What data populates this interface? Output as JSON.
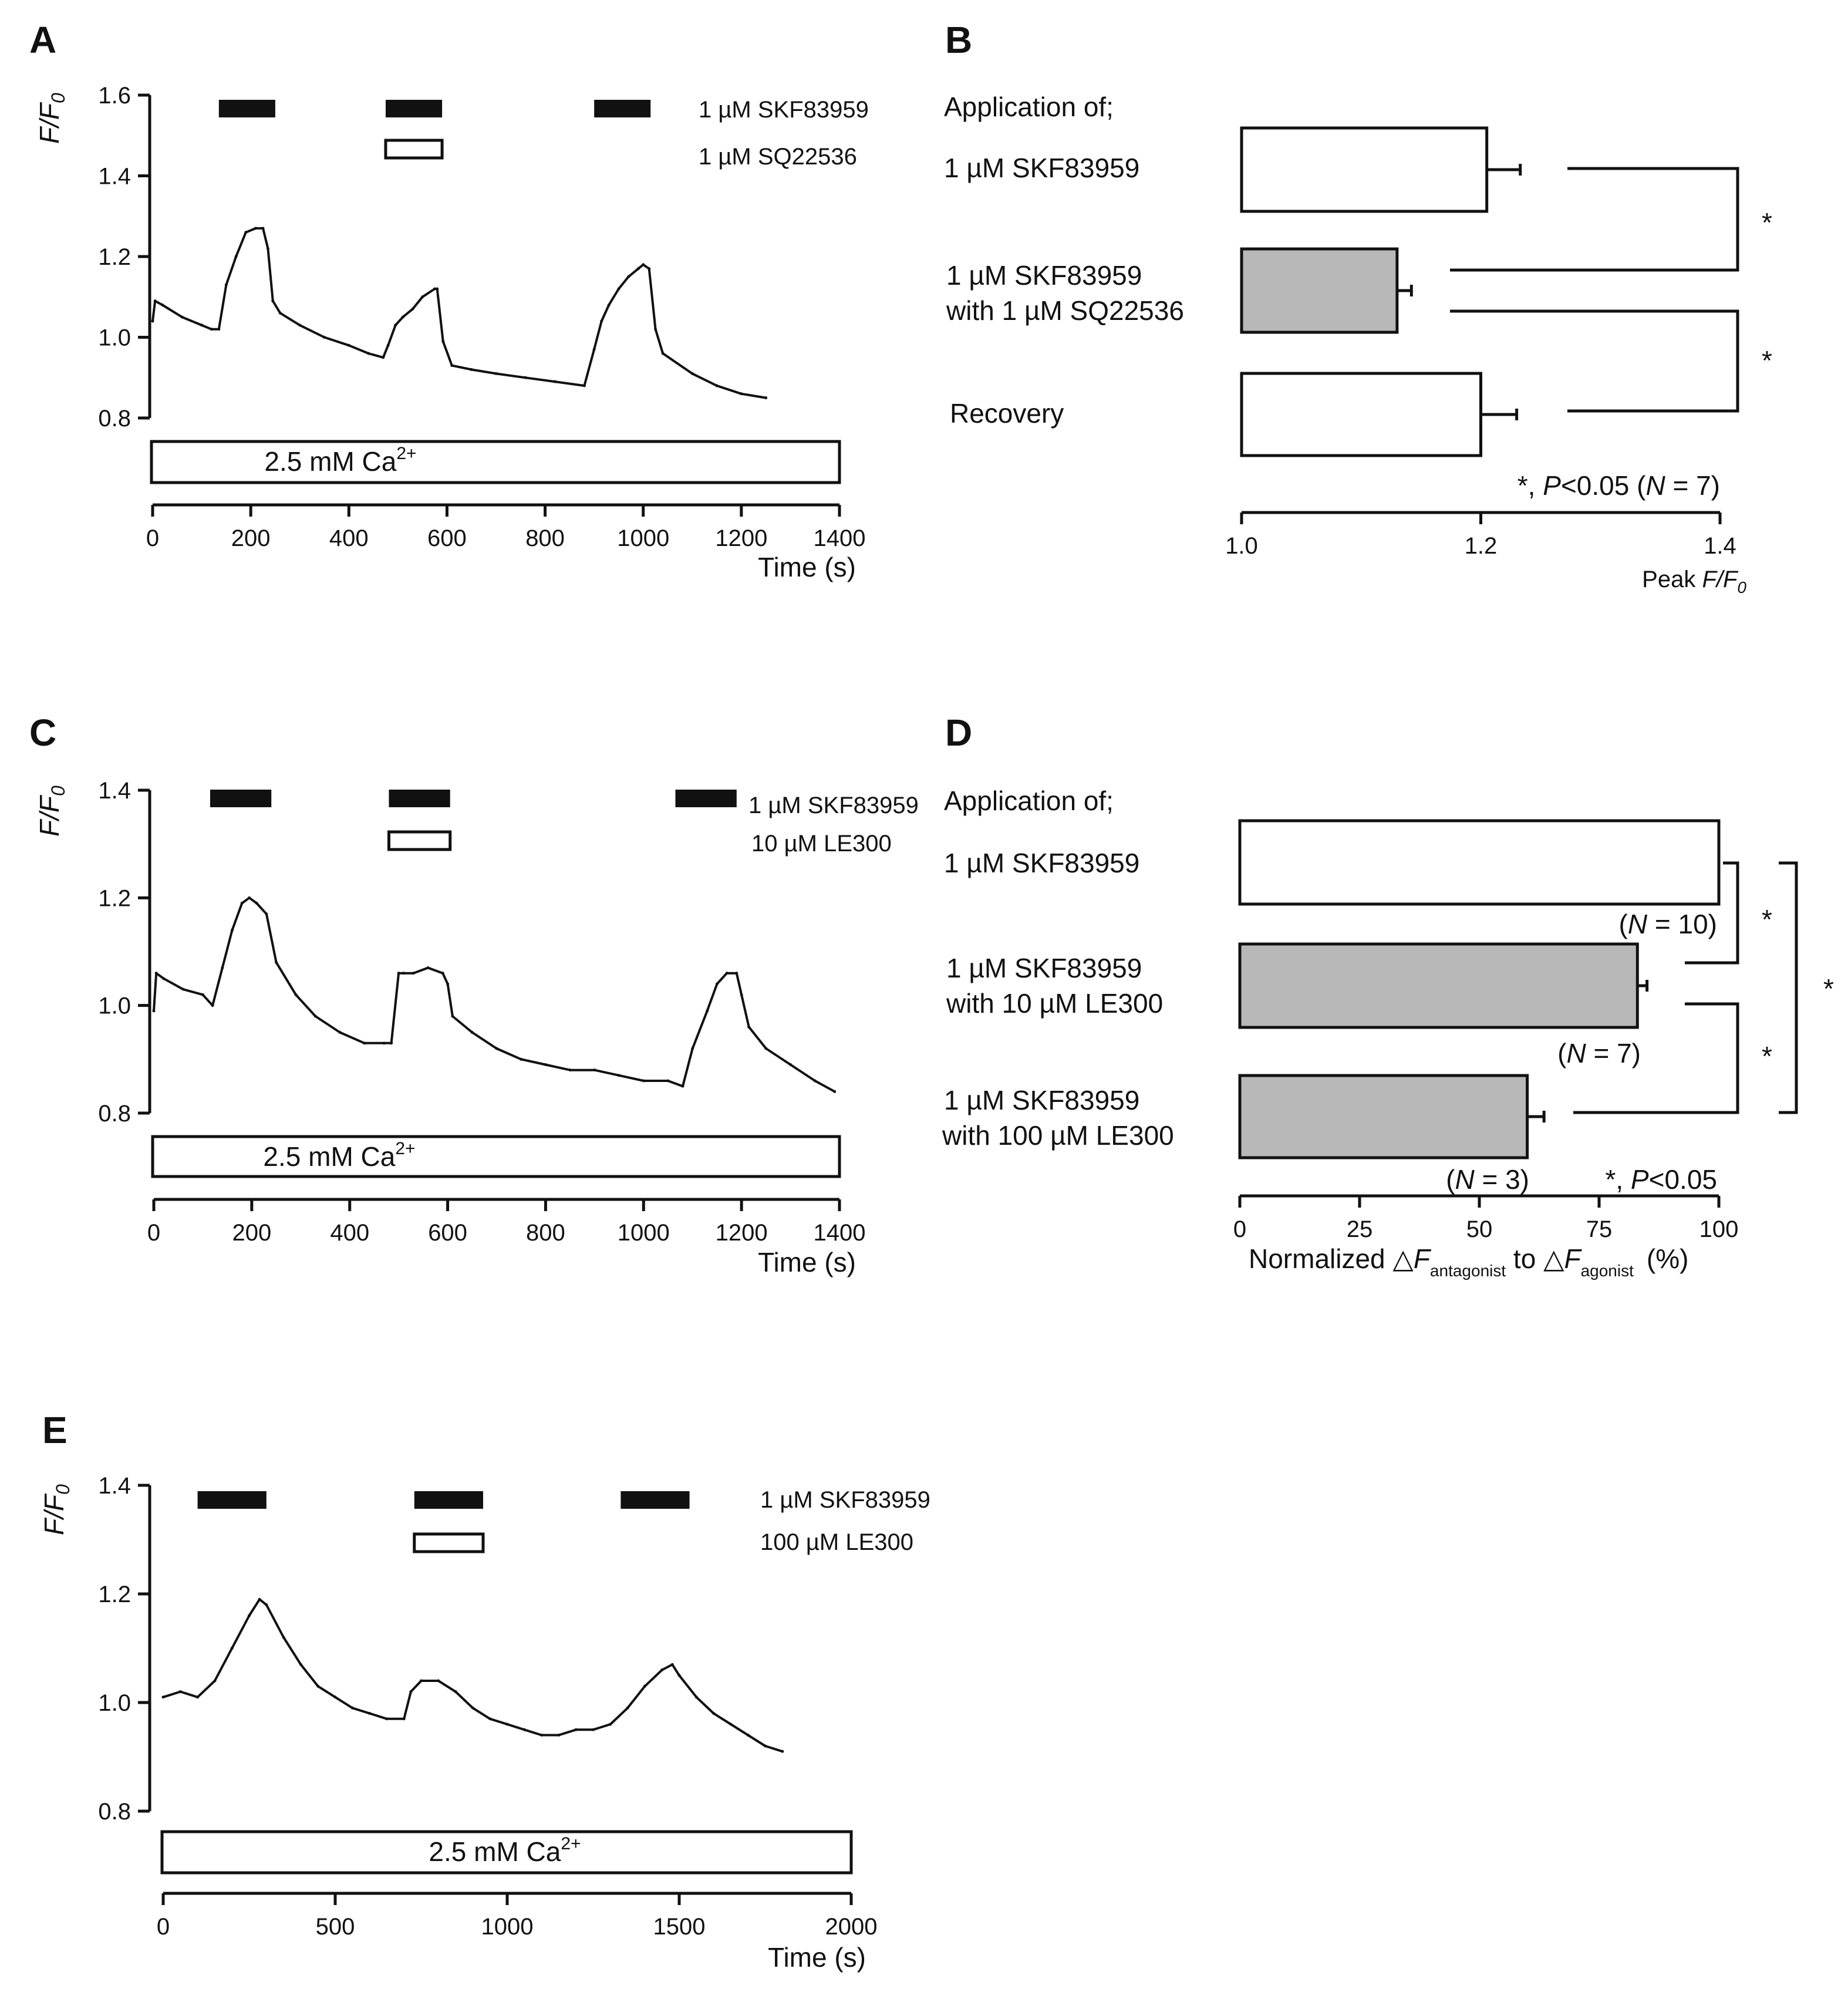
{
  "panels": {
    "A": {
      "label": "A",
      "ylabel_main": "F/F",
      "ylabel_sub": "0",
      "xlabel": "Time (s)",
      "ca_label": "2.5 mM Ca",
      "ca_sup": "2+",
      "drug1": "1 µM SKF83959",
      "drug2": "1 µM SQ22536"
    },
    "B": {
      "label": "B",
      "heading": "Application of;",
      "rows": [
        "1 µM SKF83959",
        "1 µM SKF83959",
        "with 1 µM SQ22536",
        "Recovery"
      ],
      "xlabel_main": "Peak ",
      "xlabel_italic": "F/F",
      "xlabel_sub": "0",
      "stat_pre": "*, ",
      "stat_p": "P",
      "stat_mid": "<0.05 (",
      "stat_n": "N",
      "stat_post": " = 7)",
      "star": "*"
    },
    "C": {
      "label": "C",
      "ylabel_main": "F/F",
      "ylabel_sub": "0",
      "xlabel": "Time (s)",
      "ca_label": "2.5 mM Ca",
      "ca_sup": "2+",
      "drug1": "1 µM SKF83959",
      "drug2": "10 µM LE300"
    },
    "D": {
      "label": "D",
      "heading": "Application of;",
      "rows": [
        "1 µM SKF83959",
        "1 µM SKF83959",
        "with 10 µM LE300",
        "1 µM SKF83959",
        "with 100 µM LE300"
      ],
      "n_labels": [
        {
          "pre": "(",
          "n": "N",
          "post": " = 10)"
        },
        {
          "pre": "(",
          "n": "N",
          "post": " = 7)"
        },
        {
          "pre": "(",
          "n": "N",
          "post": " = 3)"
        }
      ],
      "stat_pre": "*, ",
      "stat_p": "P",
      "stat_post": "<0.05",
      "xlabel_a": "Normalized ",
      "xlabel_delta": "△",
      "xlabel_f": "F",
      "xlabel_sub1": "antagonist",
      "xlabel_to": " to ",
      "xlabel_sub2": "agonist",
      "xlabel_pct": "(%)",
      "star": "*"
    },
    "E": {
      "label": "E",
      "ylabel_main": "F/F",
      "ylabel_sub": "0",
      "xlabel": "Time (s)",
      "ca_label": "2.5 mM Ca",
      "ca_sup": "2+",
      "drug1": "1 µM SKF83959",
      "drug2": "100 µM LE300"
    }
  },
  "chart_data": [
    {
      "id": "A",
      "type": "line",
      "xlabel": "Time (s)",
      "ylabel": "F/F0",
      "xlim": [
        0,
        1400
      ],
      "ylim": [
        0.8,
        1.6
      ],
      "xticks": [
        0,
        200,
        400,
        600,
        800,
        1000,
        1200,
        1400
      ],
      "yticks": [
        0.8,
        1.0,
        1.2,
        1.4,
        1.6
      ],
      "series": [
        {
          "name": "F/F0",
          "x": [
            0,
            5,
            20,
            60,
            100,
            120,
            135,
            150,
            170,
            190,
            210,
            225,
            235,
            245,
            260,
            300,
            350,
            400,
            440,
            470,
            480,
            495,
            510,
            530,
            550,
            575,
            580,
            592,
            610,
            650,
            700,
            760,
            820,
            880,
            900,
            915,
            930,
            950,
            970,
            990,
            1000,
            1012,
            1025,
            1040,
            1100,
            1150,
            1200,
            1250
          ],
          "y": [
            1.04,
            1.09,
            1.08,
            1.05,
            1.03,
            1.02,
            1.02,
            1.13,
            1.2,
            1.26,
            1.27,
            1.27,
            1.22,
            1.09,
            1.06,
            1.03,
            1.0,
            0.98,
            0.96,
            0.95,
            0.98,
            1.03,
            1.05,
            1.07,
            1.1,
            1.12,
            1.12,
            0.99,
            0.93,
            0.92,
            0.91,
            0.9,
            0.89,
            0.88,
            0.97,
            1.04,
            1.08,
            1.12,
            1.15,
            1.17,
            1.18,
            1.17,
            1.02,
            0.96,
            0.91,
            0.88,
            0.86,
            0.85
          ]
        }
      ],
      "drug1_intervals": [
        [
          135,
          250
        ],
        [
          475,
          590
        ],
        [
          900,
          1015
        ]
      ],
      "drug2_intervals": [
        [
          475,
          590
        ]
      ],
      "bath_range": [
        0,
        1400
      ]
    },
    {
      "id": "B",
      "type": "bar",
      "orientation": "horizontal",
      "xlim": [
        1.0,
        1.4
      ],
      "xticks": [
        1.0,
        1.2,
        1.4
      ],
      "xlabel": "Peak F/F0",
      "categories": [
        "1 µM SKF83959",
        "1 µM SKF83959 with 1 µM SQ22536",
        "Recovery"
      ],
      "values": [
        1.205,
        1.13,
        1.2
      ],
      "errors": [
        0.028,
        0.012,
        0.03
      ],
      "fills": [
        "#ffffff",
        "#b8b8b8",
        "#ffffff"
      ],
      "significance": [
        "* (1 vs 2)",
        "* (2 vs 3)"
      ]
    },
    {
      "id": "C",
      "type": "line",
      "xlabel": "Time (s)",
      "ylabel": "F/F0",
      "xlim": [
        0,
        1400
      ],
      "ylim": [
        0.8,
        1.4
      ],
      "xticks": [
        0,
        200,
        400,
        600,
        800,
        1000,
        1200,
        1400
      ],
      "yticks": [
        0.8,
        1.0,
        1.2,
        1.4
      ],
      "series": [
        {
          "name": "F/F0",
          "x": [
            0,
            5,
            20,
            60,
            100,
            120,
            140,
            160,
            180,
            195,
            210,
            230,
            250,
            290,
            330,
            380,
            430,
            470,
            485,
            500,
            510,
            530,
            560,
            590,
            600,
            610,
            650,
            700,
            750,
            800,
            850,
            900,
            950,
            1000,
            1050,
            1080,
            1100,
            1130,
            1150,
            1170,
            1190,
            1200,
            1215,
            1250,
            1300,
            1350,
            1390
          ],
          "y": [
            0.99,
            1.06,
            1.05,
            1.03,
            1.02,
            1.0,
            1.07,
            1.14,
            1.19,
            1.2,
            1.19,
            1.17,
            1.08,
            1.02,
            0.98,
            0.95,
            0.93,
            0.93,
            0.93,
            1.06,
            1.06,
            1.06,
            1.07,
            1.06,
            1.04,
            0.98,
            0.95,
            0.92,
            0.9,
            0.89,
            0.88,
            0.88,
            0.87,
            0.86,
            0.86,
            0.85,
            0.92,
            0.99,
            1.04,
            1.06,
            1.06,
            1.02,
            0.96,
            0.92,
            0.89,
            0.86,
            0.84
          ]
        }
      ],
      "drug1_intervals": [
        [
          115,
          240
        ],
        [
          480,
          605
        ],
        [
          1065,
          1190
        ]
      ],
      "drug2_intervals": [
        [
          480,
          605
        ]
      ],
      "bath_range": [
        0,
        1400
      ]
    },
    {
      "id": "D",
      "type": "bar",
      "orientation": "horizontal",
      "xlim": [
        0,
        100
      ],
      "xticks": [
        0,
        25,
        50,
        75,
        100
      ],
      "xlabel": "Normalized ΔF antagonist to ΔF agonist (%)",
      "categories": [
        "1 µM SKF83959",
        "1 µM SKF83959 with 10 µM LE300",
        "1 µM SKF83959 with 100 µM LE300"
      ],
      "values": [
        100,
        83,
        60
      ],
      "errors": [
        0,
        2,
        3.5
      ],
      "n": [
        10,
        7,
        3
      ],
      "fills": [
        "#ffffff",
        "#b8b8b8",
        "#b8b8b8"
      ],
      "significance": [
        "* (1 vs 2)",
        "* (2 vs 3)",
        "* (1 vs 3)"
      ]
    },
    {
      "id": "E",
      "type": "line",
      "xlabel": "Time (s)",
      "ylabel": "F/F0",
      "xlim": [
        0,
        2000
      ],
      "ylim": [
        0.8,
        1.4
      ],
      "xticks": [
        0,
        500,
        1000,
        1500,
        2000
      ],
      "yticks": [
        0.8,
        1.0,
        1.2,
        1.4
      ],
      "series": [
        {
          "name": "F/F0",
          "x": [
            0,
            50,
            100,
            150,
            200,
            250,
            280,
            300,
            350,
            400,
            450,
            500,
            550,
            600,
            650,
            700,
            720,
            750,
            800,
            850,
            900,
            950,
            1000,
            1050,
            1100,
            1150,
            1200,
            1250,
            1300,
            1350,
            1400,
            1450,
            1480,
            1500,
            1550,
            1600,
            1650,
            1700,
            1750,
            1800
          ],
          "y": [
            1.01,
            1.02,
            1.01,
            1.04,
            1.1,
            1.16,
            1.19,
            1.18,
            1.12,
            1.07,
            1.03,
            1.01,
            0.99,
            0.98,
            0.97,
            0.97,
            1.02,
            1.04,
            1.04,
            1.02,
            0.99,
            0.97,
            0.96,
            0.95,
            0.94,
            0.94,
            0.95,
            0.95,
            0.96,
            0.99,
            1.03,
            1.06,
            1.07,
            1.05,
            1.01,
            0.98,
            0.96,
            0.94,
            0.92,
            0.91
          ]
        }
      ],
      "drug1_intervals": [
        [
          100,
          300
        ],
        [
          730,
          930
        ],
        [
          1330,
          1530
        ]
      ],
      "drug2_intervals": [
        [
          730,
          930
        ]
      ],
      "bath_range": [
        0,
        2000
      ]
    }
  ]
}
